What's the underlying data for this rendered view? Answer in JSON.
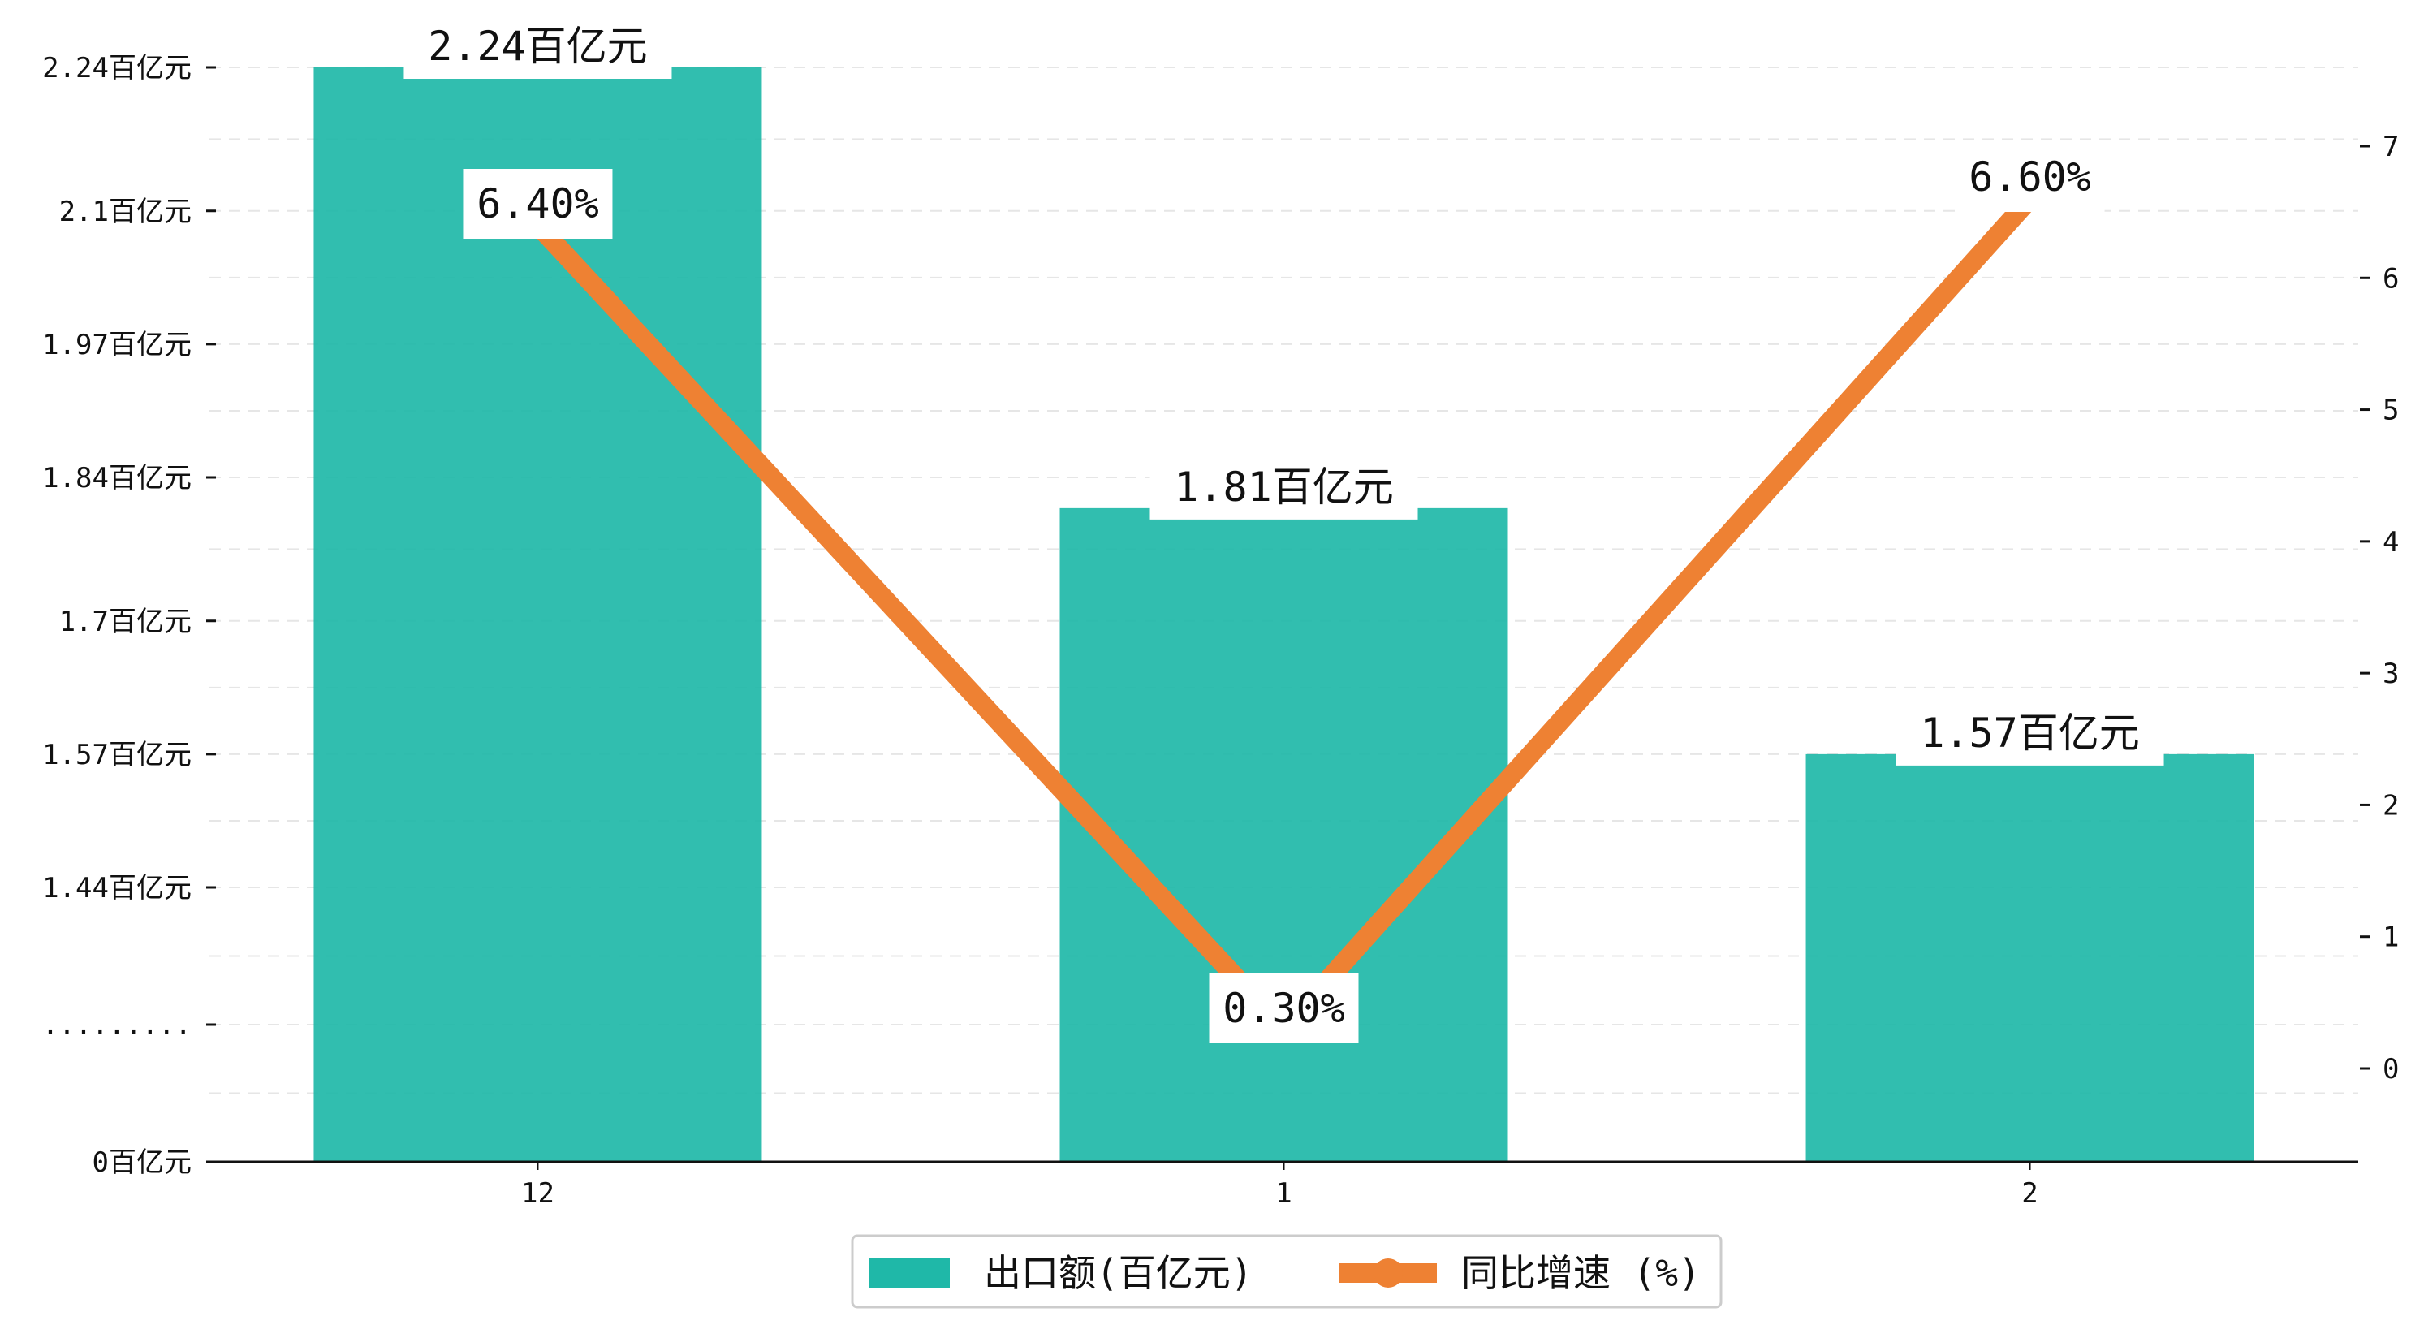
{
  "chart_data": {
    "type": "bar",
    "categories": [
      "12",
      "1",
      "2"
    ],
    "series": [
      {
        "name": "出口额(百亿元)",
        "type": "bar",
        "axis": "left",
        "values": [
          2.24,
          1.81,
          1.57
        ],
        "labels": [
          "2.24百亿元",
          "1.81百亿元",
          "1.57百亿元"
        ],
        "color": "#1fb8a8"
      },
      {
        "name": "同比增速 (%)",
        "type": "line",
        "axis": "right",
        "values": [
          6.4,
          0.3,
          6.6
        ],
        "labels": [
          "6.40%",
          "0.30%",
          "6.60%"
        ],
        "color": "#ee8133"
      }
    ],
    "y_left": {
      "ticks": [
        {
          "value": 0,
          "label": "0百亿元"
        },
        {
          "value": "break",
          "label": "........."
        },
        {
          "value": 1.44,
          "label": "1.44百亿元"
        },
        {
          "value": 1.57,
          "label": "1.57百亿元"
        },
        {
          "value": 1.7,
          "label": "1.7百亿元"
        },
        {
          "value": 1.84,
          "label": "1.84百亿元"
        },
        {
          "value": 1.97,
          "label": "1.97百亿元"
        },
        {
          "value": 2.1,
          "label": "2.1百亿元"
        },
        {
          "value": 2.24,
          "label": "2.24百亿元"
        }
      ],
      "broken_axis": true
    },
    "y_right": {
      "range": [
        -0.7,
        7.6
      ],
      "ticks": [
        {
          "value": 0,
          "label": "0"
        },
        {
          "value": 1,
          "label": "1"
        },
        {
          "value": 2,
          "label": "2"
        },
        {
          "value": 3,
          "label": "3"
        },
        {
          "value": 4,
          "label": "4"
        },
        {
          "value": 5,
          "label": "5"
        },
        {
          "value": 6,
          "label": "6"
        },
        {
          "value": 7,
          "label": "7"
        }
      ]
    },
    "grid": "horizontal-dashed",
    "legend_position": "bottom-center"
  }
}
